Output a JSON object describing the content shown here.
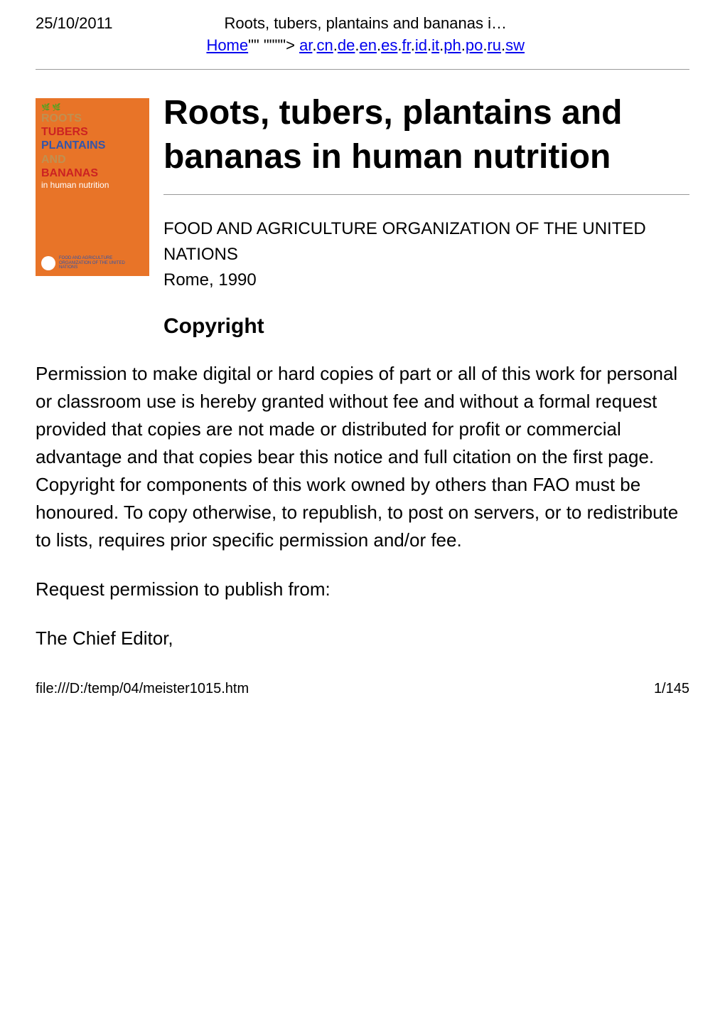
{
  "header": {
    "date": "25/10/2011",
    "truncated_title": "Roots, tubers, plantains and bananas i…"
  },
  "nav": {
    "home_label": "Home",
    "separator": "\"\" \"\"\"\"> ",
    "langs": [
      "ar",
      "cn",
      "de",
      "en",
      "es",
      "fr",
      "id",
      "it",
      "ph",
      "po",
      "ru",
      "sw"
    ]
  },
  "cover": {
    "words": [
      {
        "text": "ROOTS",
        "colorClass": "cover-word-tan"
      },
      {
        "text": "TUBERS",
        "colorClass": "cover-word-red"
      },
      {
        "text": "PLANTAINS",
        "colorClass": "cover-word-blue"
      },
      {
        "text": "AND",
        "colorClass": "cover-word-tan"
      },
      {
        "text": "BANANAS",
        "colorClass": "cover-word-red"
      }
    ],
    "subtitle": "in human nutrition",
    "footer_org": "FOOD AND AGRICULTURE ORGANIZATION OF THE UNITED NATIONS",
    "bg_color": "#e87428"
  },
  "title": "Roots, tubers, plantains and bananas in human nutrition",
  "publisher_line1": "FOOD AND AGRICULTURE ORGANIZATION OF THE UNITED NATIONS",
  "publisher_line2": "Rome, 1990",
  "copyright_heading": "Copyright",
  "permission_para": "Permission to make digital or hard copies of part or all of this work for personal or classroom use is hereby granted without fee and without a formal request provided that copies are not made or distributed for profit or commercial advantage and that copies bear this notice and full citation on the first page. Copyright for components of this work owned by others than FAO must be honoured. To copy otherwise, to republish, to post on servers, or to redistribute to lists, requires prior specific permission and/or fee.",
  "request_para": "Request permission to publish from:",
  "contact_line": "The Chief Editor,",
  "footer": {
    "path": "file:///D:/temp/04/meister1015.htm",
    "page": "1/145"
  }
}
